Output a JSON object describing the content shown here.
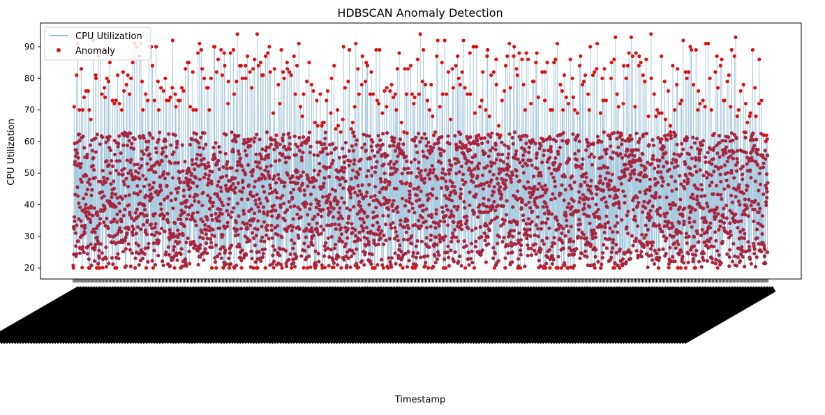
{
  "chart_data": {
    "type": "line",
    "title": "HDBSCAN Anomaly Detection",
    "xlabel": "Timestamp",
    "ylabel": "CPU Utilization",
    "ylim": [
      16.5,
      97.5
    ],
    "yticks": [
      20,
      30,
      40,
      50,
      60,
      70,
      80,
      90
    ],
    "grid": false,
    "legend": {
      "placement": "top-left"
    },
    "series": [
      {
        "name": "CPU Utilization",
        "kind": "line",
        "color": "#7fb0d0"
      },
      {
        "name": "Anomaly",
        "kind": "scatter",
        "color": "#dd1111"
      }
    ],
    "x_tick_labels_note": "",
    "value_ranges": {
      "normal_low": 20,
      "normal_high": 63,
      "spike_high": 94
    },
    "spikes": [
      71,
      81,
      91,
      70,
      83,
      70,
      74,
      76,
      76,
      70,
      67,
      92,
      81,
      80,
      87,
      93,
      75,
      77,
      74,
      80,
      79,
      85,
      73,
      72,
      73,
      81,
      72,
      70,
      82,
      76,
      78,
      81,
      75,
      80,
      85,
      91,
      90,
      87,
      91,
      79,
      70,
      75,
      73,
      90,
      90,
      84,
      73,
      90,
      79,
      70,
      77,
      76,
      80,
      73,
      73,
      74,
      77,
      92,
      75,
      71,
      73,
      73,
      77,
      76,
      83,
      85,
      85,
      71,
      82,
      70,
      70,
      88,
      91,
      89,
      83,
      80,
      77,
      77,
      70,
      80,
      90,
      90,
      82,
      86,
      89,
      81,
      88,
      84,
      72,
      79,
      88,
      89,
      75,
      79,
      94,
      84,
      84,
      80,
      84,
      80,
      87,
      82,
      77,
      83,
      86,
      94,
      84,
      85,
      81,
      81,
      87,
      88,
      90,
      82,
      69,
      83,
      62,
      78,
      72,
      89,
      82,
      80,
      85,
      83,
      82,
      81,
      87,
      75,
      84,
      91,
      71,
      68,
      75,
      60,
      79,
      85,
      78,
      76,
      66,
      73,
      65,
      75,
      65,
      66,
      66,
      73,
      76,
      69,
      80,
      84,
      64,
      70,
      65,
      63,
      67,
      90,
      77,
      79,
      89,
      64,
      66,
      71,
      91,
      83,
      75,
      78,
      87,
      79,
      85,
      84,
      75,
      82,
      75,
      89,
      73,
      72,
      89,
      69,
      76,
      71,
      77,
      76,
      78,
      74,
      75,
      70,
      83,
      88,
      66,
      63,
      83,
      75,
      83,
      84,
      75,
      72,
      74,
      86,
      75,
      94,
      79,
      89,
      78,
      73,
      70,
      78,
      68,
      62,
      87,
      92,
      71,
      85,
      75,
      92,
      75,
      82,
      67,
      83,
      77,
      84,
      87,
      80,
      78,
      82,
      92,
      77,
      75,
      88,
      75,
      90,
      69,
      90,
      62,
      71,
      73,
      82,
      70,
      87,
      89,
      68,
      81,
      82,
      86,
      78,
      65,
      62,
      73,
      76,
      84,
      87,
      91,
      77,
      87,
      90,
      83,
      81,
      88,
      86,
      78,
      70,
      88,
      86,
      72,
      79,
      79,
      85,
      88,
      74,
      61,
      82,
      73,
      82,
      85,
      61,
      70,
      70,
      85,
      86,
      91,
      78,
      76,
      70,
      81,
      74,
      72,
      86,
      80,
      74,
      70,
      69,
      84,
      87,
      78,
      79,
      81,
      75,
      70,
      90,
      81,
      82,
      83,
      91,
      69,
      80,
      73,
      83,
      73,
      62,
      80,
      85,
      86,
      93,
      75,
      71,
      62,
      72,
      84,
      80,
      84,
      88,
      93,
      87,
      71,
      88,
      84,
      87,
      85,
      81,
      79,
      86,
      68,
      94,
      80,
      75,
      68,
      70,
      69,
      87,
      69,
      79,
      67,
      76,
      65,
      63,
      84,
      70,
      78,
      83,
      72,
      73,
      92,
      82,
      80,
      82,
      90,
      89,
      78,
      89,
      70,
      76,
      72,
      73,
      71,
      91,
      91,
      80,
      70,
      62,
      82,
      87,
      77,
      84,
      86,
      73,
      73,
      79,
      81,
      71,
      89,
      87,
      93,
      68,
      70,
      76,
      78,
      63,
      72,
      66,
      68,
      69,
      89,
      77,
      68,
      72,
      86,
      73,
      62,
      60,
      62
    ]
  }
}
